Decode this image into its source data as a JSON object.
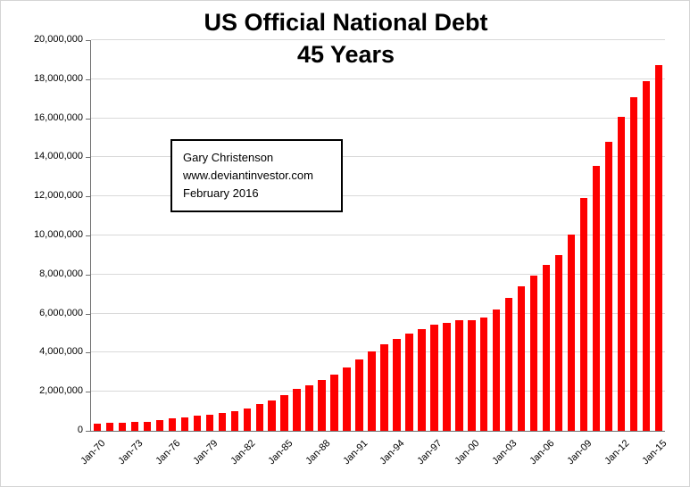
{
  "chart_data": {
    "type": "bar",
    "title": "US Official National Debt",
    "subtitle": "45 Years",
    "xlabel": "",
    "ylabel": "",
    "units": "millions of USD",
    "ylim": [
      0,
      20000000
    ],
    "y_tick_interval": 2000000,
    "y_tick_labels": [
      "0",
      "2,000,000",
      "4,000,000",
      "6,000,000",
      "8,000,000",
      "10,000,000",
      "12,000,000",
      "14,000,000",
      "16,000,000",
      "18,000,000",
      "20,000,000"
    ],
    "x_tick_every": 3,
    "x_tick_labels": [
      "Jan-70",
      "Jan-73",
      "Jan-76",
      "Jan-79",
      "Jan-82",
      "Jan-85",
      "Jan-88",
      "Jan-91",
      "Jan-94",
      "Jan-97",
      "Jan-00",
      "Jan-03",
      "Jan-06",
      "Jan-09",
      "Jan-12",
      "Jan-15"
    ],
    "categories": [
      "Jan-70",
      "Jan-71",
      "Jan-72",
      "Jan-73",
      "Jan-74",
      "Jan-75",
      "Jan-76",
      "Jan-77",
      "Jan-78",
      "Jan-79",
      "Jan-80",
      "Jan-81",
      "Jan-82",
      "Jan-83",
      "Jan-84",
      "Jan-85",
      "Jan-86",
      "Jan-87",
      "Jan-88",
      "Jan-89",
      "Jan-90",
      "Jan-91",
      "Jan-92",
      "Jan-93",
      "Jan-94",
      "Jan-95",
      "Jan-96",
      "Jan-97",
      "Jan-98",
      "Jan-99",
      "Jan-00",
      "Jan-01",
      "Jan-02",
      "Jan-03",
      "Jan-04",
      "Jan-05",
      "Jan-06",
      "Jan-07",
      "Jan-08",
      "Jan-09",
      "Jan-10",
      "Jan-11",
      "Jan-12",
      "Jan-13",
      "Jan-14",
      "Jan-15"
    ],
    "values": [
      370000,
      398000,
      427000,
      458000,
      475000,
      533000,
      620000,
      699000,
      772000,
      827000,
      908000,
      998000,
      1142000,
      1377000,
      1572000,
      1823000,
      2125000,
      2350000,
      2602000,
      2857000,
      3233000,
      3665000,
      4065000,
      4411000,
      4693000,
      4974000,
      5225000,
      5413000,
      5526000,
      5656000,
      5674000,
      5807000,
      6228000,
      6783000,
      7379000,
      7933000,
      8507000,
      9008000,
      10025000,
      11910000,
      13562000,
      14790000,
      16066000,
      17100000,
      17900000,
      18700000
    ],
    "bar_color": "#fe0000",
    "grid": "horizontal",
    "legend": "none",
    "x_label_rotation": -45,
    "annotation_lines": [
      "Gary Christenson",
      "www.deviantinvestor.com",
      "February 2016"
    ]
  }
}
